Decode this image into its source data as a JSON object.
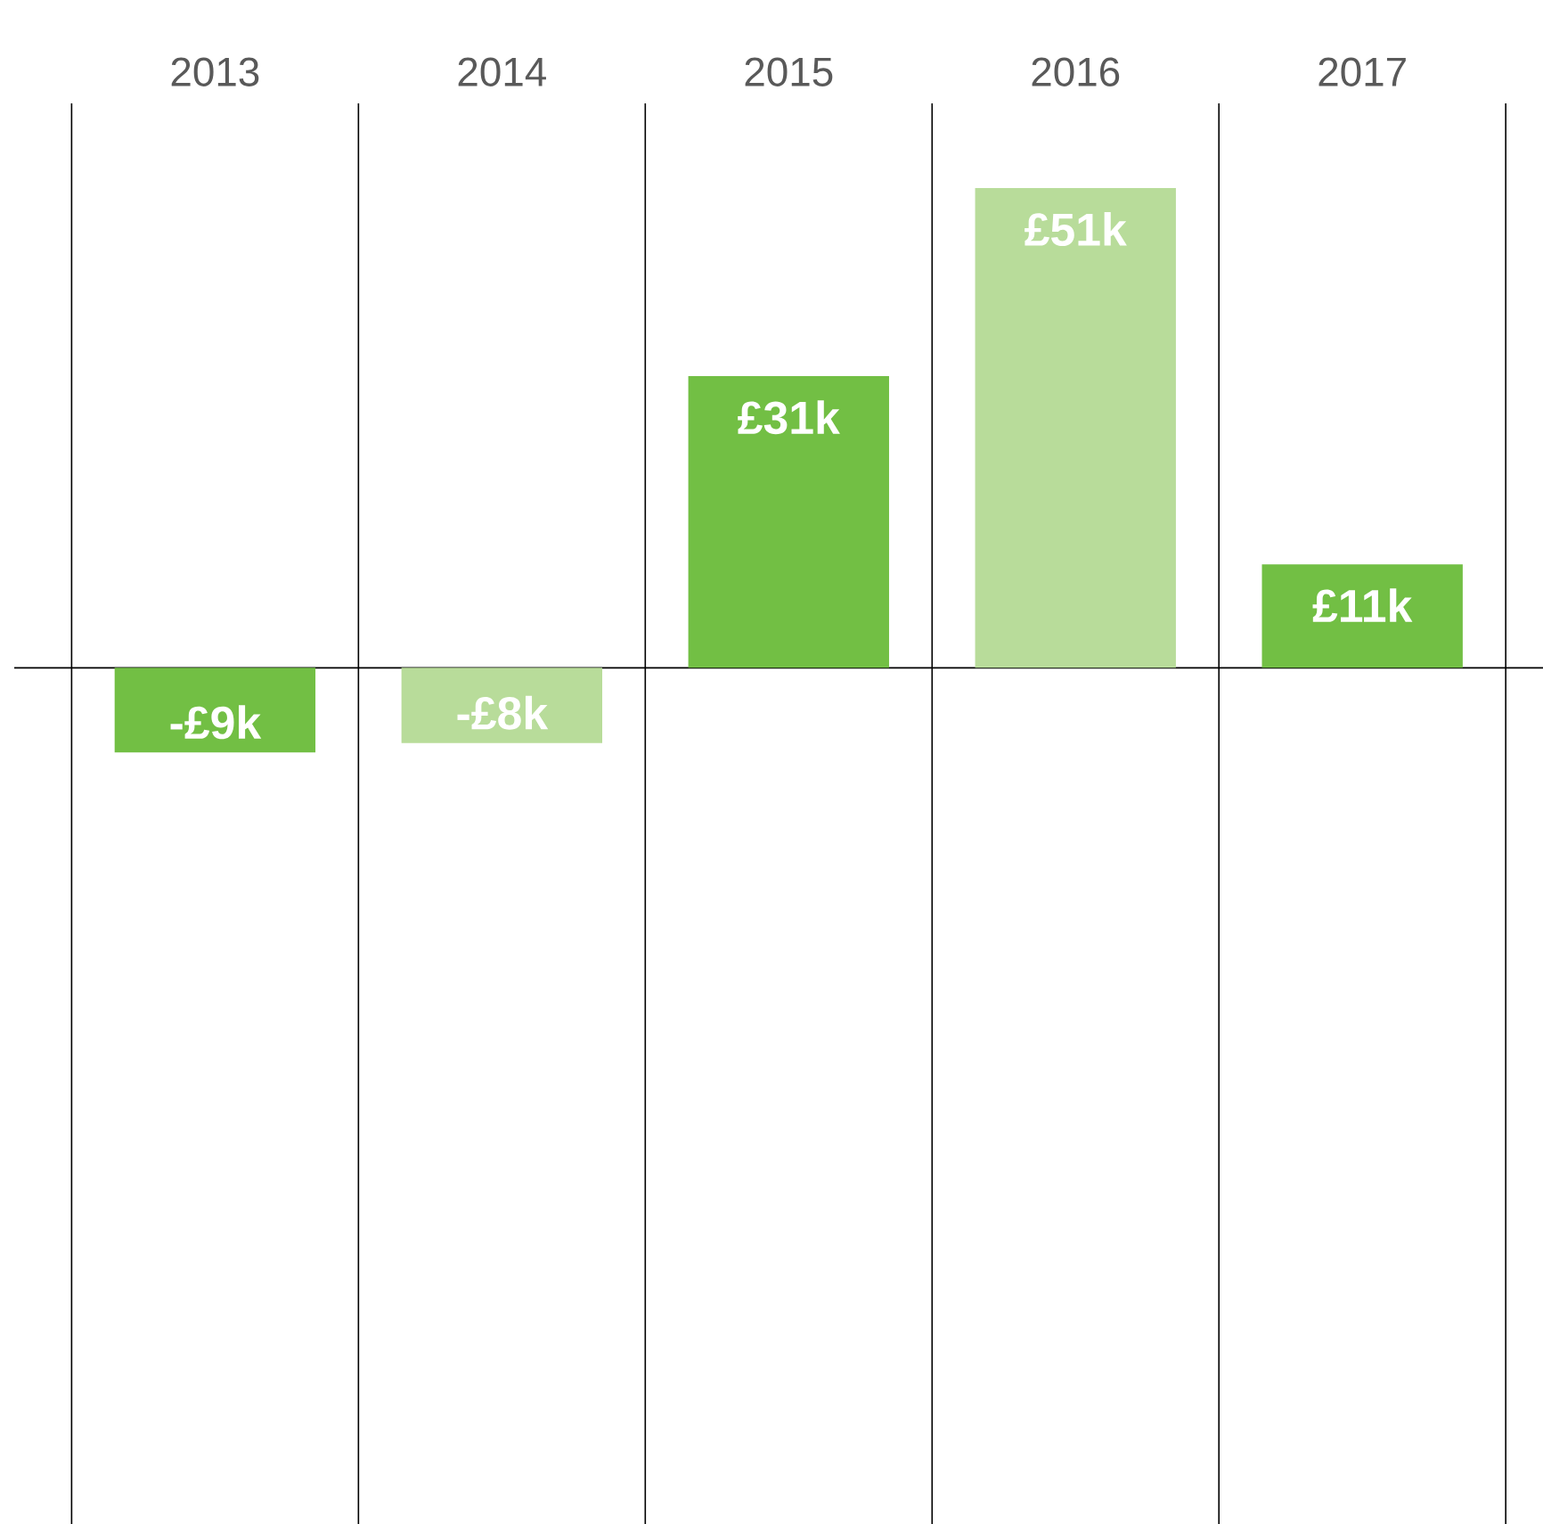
{
  "chart_data": {
    "type": "bar",
    "categories": [
      "2013",
      "2014",
      "2015",
      "2016",
      "2017"
    ],
    "values": [
      -9,
      -8,
      31,
      51,
      11
    ],
    "value_labels": [
      "-£9k",
      "-£8k",
      "£31k",
      "£51k",
      "£11k"
    ],
    "colors": [
      "#72bf44",
      "#b8dc9a",
      "#72bf44",
      "#b8dc9a",
      "#72bf44"
    ],
    "ylim": [
      -91,
      60
    ],
    "grid": "x"
  }
}
